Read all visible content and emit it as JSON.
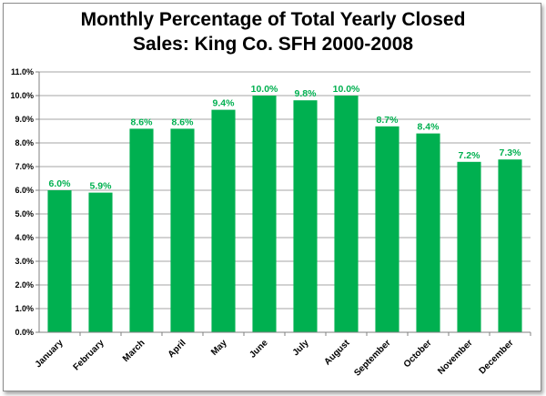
{
  "chart_data": {
    "type": "bar",
    "title_line1": "Monthly Percentage of Total Yearly Closed",
    "title_line2": "Sales: King Co. SFH 2000-2008",
    "xlabel": "",
    "ylabel": "",
    "categories": [
      "January",
      "February",
      "March",
      "April",
      "May",
      "June",
      "July",
      "August",
      "September",
      "October",
      "November",
      "December"
    ],
    "values": [
      6.0,
      5.9,
      8.6,
      8.6,
      9.4,
      10.0,
      9.8,
      10.0,
      8.7,
      8.4,
      7.2,
      7.3
    ],
    "data_labels": [
      "6.0%",
      "5.9%",
      "8.6%",
      "8.6%",
      "9.4%",
      "10.0%",
      "9.8%",
      "10.0%",
      "8.7%",
      "8.4%",
      "7.2%",
      "7.3%"
    ],
    "ylim": [
      0,
      11
    ],
    "y_ticks": [
      "0.0%",
      "1.0%",
      "2.0%",
      "3.0%",
      "4.0%",
      "5.0%",
      "6.0%",
      "7.0%",
      "8.0%",
      "9.0%",
      "10.0%",
      "11.0%"
    ],
    "grid": true,
    "legend": "none",
    "bar_color": "#00b050",
    "label_color": "#00b050"
  }
}
